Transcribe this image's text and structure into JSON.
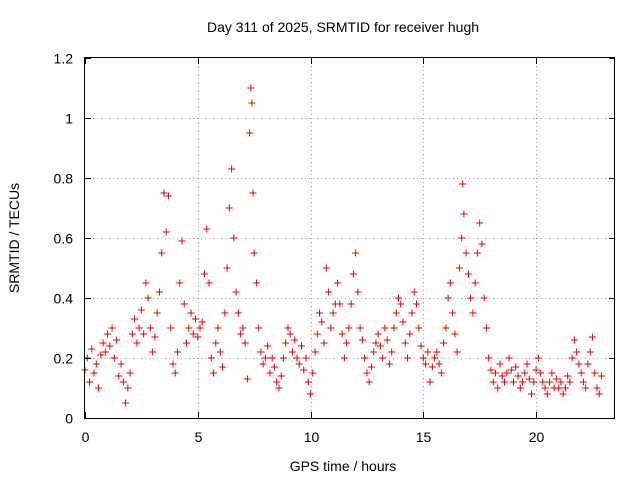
{
  "chart_data": {
    "type": "scatter",
    "title": "Day 311 of 2025, SRMTID for receiver hugh",
    "xlabel": "GPS time / hours",
    "ylabel": "SRMTID / TECUs",
    "xlim": [
      0,
      23.5
    ],
    "ylim": [
      0,
      1.2
    ],
    "xticks": [
      0,
      5,
      10,
      15,
      20
    ],
    "xtick_labels": [
      "0",
      "5",
      "10",
      "15",
      "20"
    ],
    "yticks": [
      0,
      0.2,
      0.4,
      0.6,
      0.8,
      1.0,
      1.2
    ],
    "ytick_labels": [
      "0",
      "0.2",
      "0.4",
      "0.6",
      "0.8",
      "1",
      "1.2"
    ],
    "grid": true,
    "marker": "+",
    "series_color": "#ee0000",
    "series": [
      {
        "name": "SRMTID",
        "points": [
          [
            0.0,
            0.16
          ],
          [
            0.1,
            0.2
          ],
          [
            0.2,
            0.12
          ],
          [
            0.3,
            0.23
          ],
          [
            0.4,
            0.15
          ],
          [
            0.5,
            0.18
          ],
          [
            0.6,
            0.1
          ],
          [
            0.7,
            0.21
          ],
          [
            0.8,
            0.25
          ],
          [
            0.9,
            0.22
          ],
          [
            1.0,
            0.28
          ],
          [
            1.1,
            0.24
          ],
          [
            1.2,
            0.3
          ],
          [
            1.3,
            0.2
          ],
          [
            1.4,
            0.26
          ],
          [
            1.5,
            0.14
          ],
          [
            1.6,
            0.18
          ],
          [
            1.7,
            0.12
          ],
          [
            1.8,
            0.05
          ],
          [
            1.9,
            0.1
          ],
          [
            2.0,
            0.15
          ],
          [
            2.1,
            0.28
          ],
          [
            2.2,
            0.33
          ],
          [
            2.3,
            0.25
          ],
          [
            2.4,
            0.3
          ],
          [
            2.5,
            0.36
          ],
          [
            2.6,
            0.28
          ],
          [
            2.7,
            0.45
          ],
          [
            2.8,
            0.4
          ],
          [
            2.9,
            0.3
          ],
          [
            3.0,
            0.22
          ],
          [
            3.1,
            0.27
          ],
          [
            3.2,
            0.35
          ],
          [
            3.3,
            0.42
          ],
          [
            3.4,
            0.55
          ],
          [
            3.5,
            0.75
          ],
          [
            3.6,
            0.62
          ],
          [
            3.7,
            0.74
          ],
          [
            3.8,
            0.3
          ],
          [
            3.9,
            0.18
          ],
          [
            4.0,
            0.15
          ],
          [
            4.1,
            0.22
          ],
          [
            4.2,
            0.45
          ],
          [
            4.3,
            0.59
          ],
          [
            4.4,
            0.38
          ],
          [
            4.5,
            0.25
          ],
          [
            4.6,
            0.3
          ],
          [
            4.7,
            0.35
          ],
          [
            4.8,
            0.28
          ],
          [
            4.9,
            0.33
          ],
          [
            5.0,
            0.27
          ],
          [
            5.1,
            0.3
          ],
          [
            5.2,
            0.32
          ],
          [
            5.3,
            0.48
          ],
          [
            5.4,
            0.63
          ],
          [
            5.5,
            0.45
          ],
          [
            5.6,
            0.2
          ],
          [
            5.7,
            0.15
          ],
          [
            5.8,
            0.25
          ],
          [
            5.9,
            0.3
          ],
          [
            6.0,
            0.22
          ],
          [
            6.1,
            0.17
          ],
          [
            6.2,
            0.35
          ],
          [
            6.3,
            0.5
          ],
          [
            6.4,
            0.7
          ],
          [
            6.5,
            0.83
          ],
          [
            6.6,
            0.6
          ],
          [
            6.7,
            0.42
          ],
          [
            6.8,
            0.35
          ],
          [
            6.9,
            0.28
          ],
          [
            7.0,
            0.3
          ],
          [
            7.1,
            0.25
          ],
          [
            7.2,
            0.13
          ],
          [
            7.3,
            0.95
          ],
          [
            7.35,
            1.1
          ],
          [
            7.4,
            1.05
          ],
          [
            7.45,
            0.75
          ],
          [
            7.5,
            0.55
          ],
          [
            7.6,
            0.45
          ],
          [
            7.7,
            0.3
          ],
          [
            7.8,
            0.22
          ],
          [
            7.9,
            0.18
          ],
          [
            8.0,
            0.2
          ],
          [
            8.1,
            0.24
          ],
          [
            8.2,
            0.15
          ],
          [
            8.3,
            0.2
          ],
          [
            8.4,
            0.17
          ],
          [
            8.5,
            0.12
          ],
          [
            8.6,
            0.1
          ],
          [
            8.7,
            0.14
          ],
          [
            8.8,
            0.2
          ],
          [
            8.9,
            0.25
          ],
          [
            9.0,
            0.3
          ],
          [
            9.1,
            0.28
          ],
          [
            9.2,
            0.22
          ],
          [
            9.3,
            0.26
          ],
          [
            9.4,
            0.2
          ],
          [
            9.5,
            0.18
          ],
          [
            9.6,
            0.24
          ],
          [
            9.7,
            0.16
          ],
          [
            9.8,
            0.2
          ],
          [
            9.9,
            0.12
          ],
          [
            10.0,
            0.08
          ],
          [
            10.1,
            0.15
          ],
          [
            10.2,
            0.22
          ],
          [
            10.3,
            0.28
          ],
          [
            10.4,
            0.35
          ],
          [
            10.5,
            0.32
          ],
          [
            10.6,
            0.25
          ],
          [
            10.7,
            0.5
          ],
          [
            10.8,
            0.42
          ],
          [
            10.9,
            0.3
          ],
          [
            11.0,
            0.35
          ],
          [
            11.1,
            0.38
          ],
          [
            11.2,
            0.45
          ],
          [
            11.3,
            0.38
          ],
          [
            11.4,
            0.28
          ],
          [
            11.5,
            0.2
          ],
          [
            11.6,
            0.25
          ],
          [
            11.7,
            0.3
          ],
          [
            11.8,
            0.38
          ],
          [
            11.9,
            0.48
          ],
          [
            12.0,
            0.55
          ],
          [
            12.1,
            0.42
          ],
          [
            12.2,
            0.3
          ],
          [
            12.3,
            0.26
          ],
          [
            12.4,
            0.2
          ],
          [
            12.5,
            0.15
          ],
          [
            12.6,
            0.12
          ],
          [
            12.7,
            0.17
          ],
          [
            12.8,
            0.22
          ],
          [
            12.9,
            0.25
          ],
          [
            13.0,
            0.28
          ],
          [
            13.1,
            0.24
          ],
          [
            13.2,
            0.2
          ],
          [
            13.3,
            0.3
          ],
          [
            13.4,
            0.26
          ],
          [
            13.5,
            0.18
          ],
          [
            13.6,
            0.22
          ],
          [
            13.7,
            0.3
          ],
          [
            13.8,
            0.35
          ],
          [
            13.9,
            0.4
          ],
          [
            14.0,
            0.38
          ],
          [
            14.1,
            0.32
          ],
          [
            14.2,
            0.25
          ],
          [
            14.3,
            0.2
          ],
          [
            14.4,
            0.28
          ],
          [
            14.5,
            0.35
          ],
          [
            14.6,
            0.42
          ],
          [
            14.7,
            0.38
          ],
          [
            14.8,
            0.3
          ],
          [
            14.9,
            0.24
          ],
          [
            15.0,
            0.2
          ],
          [
            15.1,
            0.18
          ],
          [
            15.2,
            0.22
          ],
          [
            15.3,
            0.12
          ],
          [
            15.4,
            0.17
          ],
          [
            15.5,
            0.2
          ],
          [
            15.6,
            0.22
          ],
          [
            15.7,
            0.18
          ],
          [
            15.8,
            0.15
          ],
          [
            15.9,
            0.25
          ],
          [
            16.0,
            0.3
          ],
          [
            16.1,
            0.4
          ],
          [
            16.2,
            0.45
          ],
          [
            16.3,
            0.35
          ],
          [
            16.4,
            0.28
          ],
          [
            16.5,
            0.22
          ],
          [
            16.6,
            0.5
          ],
          [
            16.7,
            0.6
          ],
          [
            16.75,
            0.78
          ],
          [
            16.8,
            0.68
          ],
          [
            16.9,
            0.55
          ],
          [
            17.0,
            0.48
          ],
          [
            17.1,
            0.4
          ],
          [
            17.2,
            0.35
          ],
          [
            17.3,
            0.45
          ],
          [
            17.4,
            0.55
          ],
          [
            17.5,
            0.65
          ],
          [
            17.6,
            0.58
          ],
          [
            17.7,
            0.4
          ],
          [
            17.8,
            0.3
          ],
          [
            17.9,
            0.2
          ],
          [
            18.0,
            0.16
          ],
          [
            18.1,
            0.12
          ],
          [
            18.2,
            0.15
          ],
          [
            18.3,
            0.1
          ],
          [
            18.4,
            0.18
          ],
          [
            18.5,
            0.14
          ],
          [
            18.6,
            0.12
          ],
          [
            18.7,
            0.15
          ],
          [
            18.8,
            0.2
          ],
          [
            18.9,
            0.16
          ],
          [
            19.0,
            0.12
          ],
          [
            19.1,
            0.17
          ],
          [
            19.2,
            0.14
          ],
          [
            19.3,
            0.1
          ],
          [
            19.4,
            0.12
          ],
          [
            19.5,
            0.15
          ],
          [
            19.6,
            0.18
          ],
          [
            19.7,
            0.13
          ],
          [
            19.8,
            0.08
          ],
          [
            19.9,
            0.12
          ],
          [
            20.0,
            0.16
          ],
          [
            20.1,
            0.2
          ],
          [
            20.2,
            0.15
          ],
          [
            20.3,
            0.12
          ],
          [
            20.4,
            0.1
          ],
          [
            20.5,
            0.08
          ],
          [
            20.6,
            0.12
          ],
          [
            20.7,
            0.15
          ],
          [
            20.8,
            0.1
          ],
          [
            20.9,
            0.13
          ],
          [
            21.0,
            0.1
          ],
          [
            21.1,
            0.12
          ],
          [
            21.2,
            0.08
          ],
          [
            21.3,
            0.1
          ],
          [
            21.4,
            0.14
          ],
          [
            21.5,
            0.12
          ],
          [
            21.6,
            0.2
          ],
          [
            21.7,
            0.26
          ],
          [
            21.8,
            0.22
          ],
          [
            21.9,
            0.18
          ],
          [
            22.0,
            0.15
          ],
          [
            22.1,
            0.12
          ],
          [
            22.2,
            0.1
          ],
          [
            22.3,
            0.18
          ],
          [
            22.4,
            0.22
          ],
          [
            22.5,
            0.27
          ],
          [
            22.6,
            0.15
          ],
          [
            22.7,
            0.1
          ],
          [
            22.8,
            0.08
          ],
          [
            22.9,
            0.14
          ]
        ]
      }
    ]
  }
}
